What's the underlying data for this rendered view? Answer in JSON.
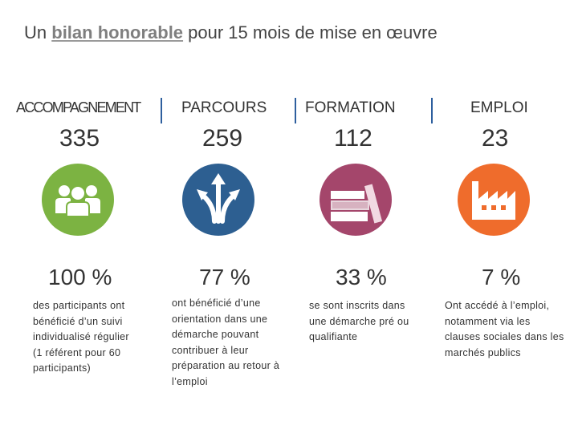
{
  "title": {
    "before": "Un ",
    "highlight": "bilan honorable",
    "after": " pour 15 mois de mise en œuvre"
  },
  "columns": [
    {
      "label": "ACCOMPAGNEMENT",
      "number": "335",
      "icon": "people-group-icon",
      "color": "#7cb342",
      "percent": "100 %",
      "description": "des participants ont bénéficié d’un suivi individualisé régulier (1 référent pour 60 participants)"
    },
    {
      "label": "PARCOURS",
      "number": "259",
      "icon": "split-arrows-icon",
      "color": "#2d5f91",
      "percent": "77 %",
      "description": "ont bénéficié d’une orientation dans une démarche pouvant contribuer à leur préparation au retour à l’emploi"
    },
    {
      "label": "FORMATION",
      "number": "112",
      "icon": "books-icon",
      "color": "#a4466b",
      "percent": "33 %",
      "description": "se sont inscrits dans une démarche pré ou qualifiante"
    },
    {
      "label": "EMPLOI",
      "number": "23",
      "icon": "factory-icon",
      "color": "#ef6c2c",
      "percent": "7 %",
      "description": "Ont accédé à l’emploi, notamment via les clauses sociales dans les marchés publics"
    }
  ],
  "separator_color": "#2e5f9e"
}
